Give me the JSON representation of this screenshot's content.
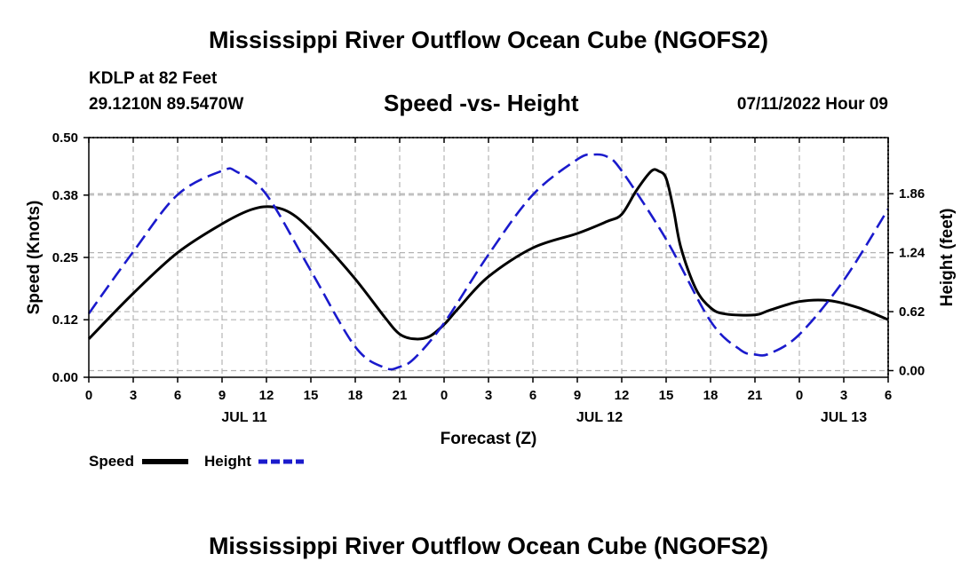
{
  "header": {
    "title": "Mississippi River Outflow Ocean Cube (NGOFS2)",
    "station": "KDLP at 82 Feet",
    "coords": "29.1210N  89.5470W",
    "chart_title": "Speed -vs- Height",
    "timestamp": "07/11/2022 Hour 09"
  },
  "legend": {
    "speed_label": "Speed",
    "height_label": "Height"
  },
  "footer": {
    "title": "Mississippi River Outflow Ocean Cube (NGOFS2)"
  },
  "colors": {
    "speed": "#000000",
    "height": "#1a1acc",
    "grid": "#b3b3b3"
  },
  "chart_data": {
    "type": "line",
    "title": "Speed -vs- Height",
    "xlabel": "Forecast (Z)",
    "ylabel": "Speed (Knots)",
    "y2label": "Height (feet)",
    "xlim": [
      0,
      54
    ],
    "ylim": [
      0,
      0.5
    ],
    "y2lim": [
      -0.07,
      2.45
    ],
    "x_ticks": [
      0,
      3,
      6,
      9,
      12,
      15,
      18,
      21,
      24,
      27,
      30,
      33,
      36,
      39,
      42,
      45,
      48,
      51,
      54
    ],
    "x_tick_labels": [
      "0",
      "3",
      "6",
      "9",
      "12",
      "15",
      "18",
      "21",
      "0",
      "3",
      "6",
      "9",
      "12",
      "15",
      "18",
      "21",
      "0",
      "3",
      "6"
    ],
    "day_labels": [
      {
        "x": 10.5,
        "label": "JUL 11"
      },
      {
        "x": 34.5,
        "label": "JUL 12"
      },
      {
        "x": 51,
        "label": "JUL 13"
      }
    ],
    "y_ticks": [
      0.0,
      0.12,
      0.25,
      0.38,
      0.5
    ],
    "y_tick_labels": [
      "0.00",
      "0.12",
      "0.25",
      "0.38",
      "0.50"
    ],
    "y2_ticks": [
      0.0,
      0.62,
      1.24,
      1.86
    ],
    "y2_tick_labels": [
      "0.00",
      "0.62",
      "1.24",
      "1.86"
    ],
    "grid": true,
    "series": [
      {
        "name": "Speed",
        "axis": "left",
        "style": "solid",
        "x": [
          0,
          3,
          6,
          9,
          11,
          12.5,
          14,
          16,
          18,
          20,
          21,
          22,
          23,
          24,
          25,
          27,
          30,
          33,
          35,
          36,
          37,
          38,
          38.5,
          39,
          39.5,
          40,
          41,
          42,
          43,
          45,
          46,
          48,
          50,
          52,
          54
        ],
        "values": [
          0.08,
          0.175,
          0.26,
          0.32,
          0.35,
          0.355,
          0.335,
          0.275,
          0.205,
          0.125,
          0.09,
          0.08,
          0.085,
          0.11,
          0.145,
          0.21,
          0.27,
          0.3,
          0.325,
          0.34,
          0.39,
          0.43,
          0.43,
          0.415,
          0.35,
          0.27,
          0.185,
          0.145,
          0.132,
          0.13,
          0.14,
          0.158,
          0.16,
          0.145,
          0.12
        ]
      },
      {
        "name": "Height",
        "axis": "right",
        "style": "dashed",
        "x": [
          0,
          3,
          6,
          9,
          10,
          12,
          15,
          18,
          20,
          21,
          22,
          24,
          27,
          30,
          33,
          34,
          35,
          36,
          39,
          42,
          44,
          45,
          46,
          48,
          51,
          54
        ],
        "values": [
          0.6,
          1.25,
          1.85,
          2.1,
          2.09,
          1.85,
          1.05,
          0.25,
          0.03,
          0.04,
          0.13,
          0.5,
          1.22,
          1.85,
          2.22,
          2.27,
          2.25,
          2.1,
          1.38,
          0.52,
          0.22,
          0.17,
          0.18,
          0.38,
          0.95,
          1.7
        ]
      }
    ]
  }
}
